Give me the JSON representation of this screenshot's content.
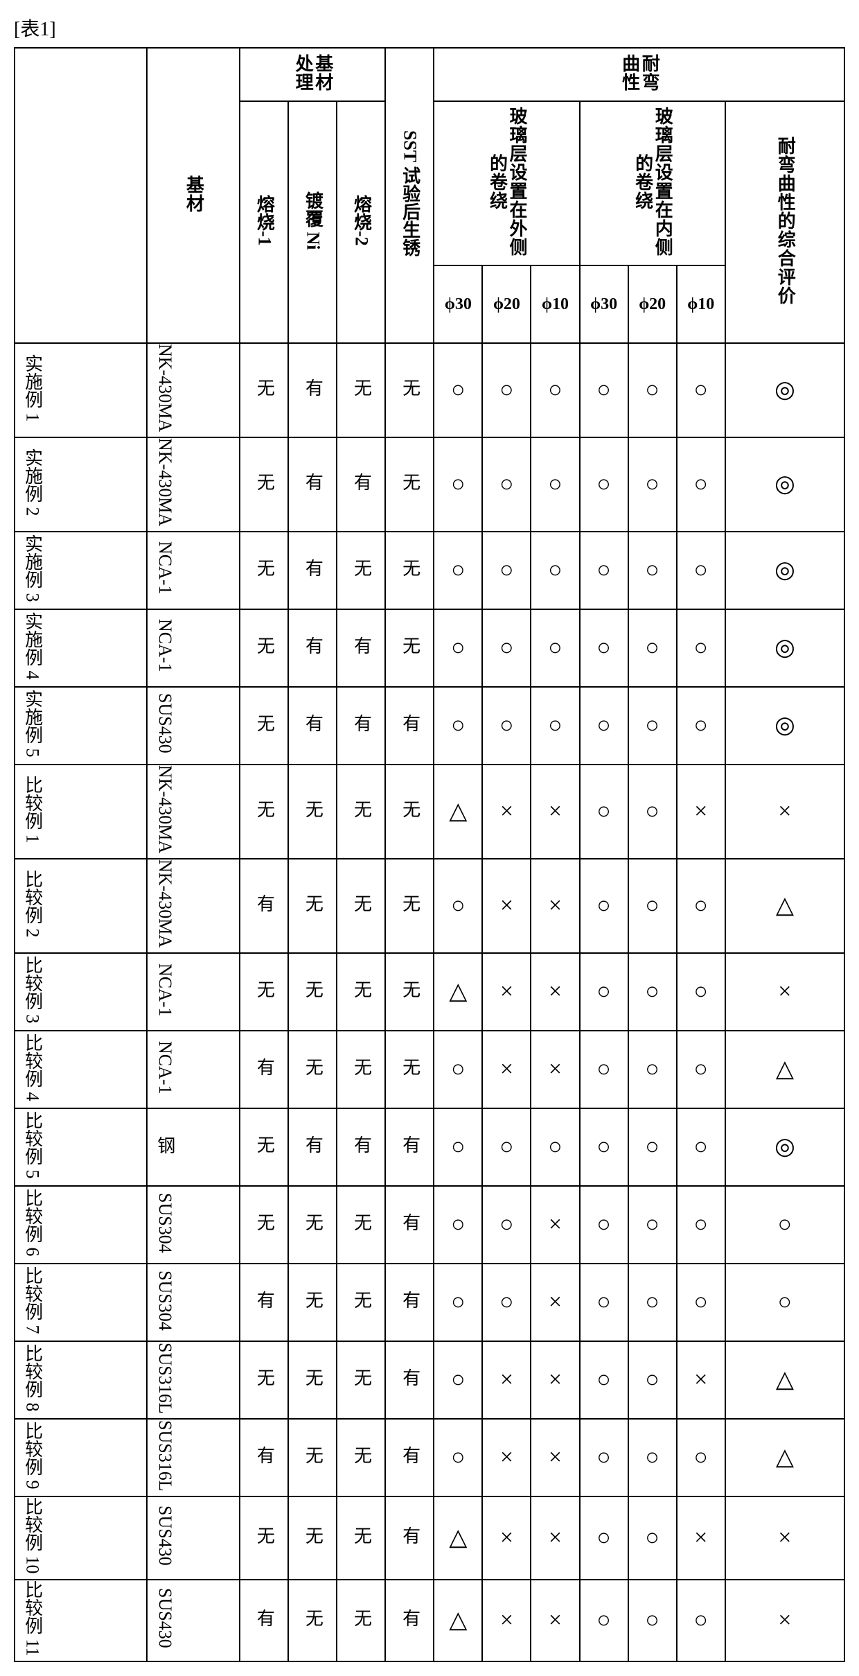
{
  "table_label": "[表1]",
  "headers": {
    "base_material": "基材",
    "base_treatment": "基材处理",
    "treat1": "熔烧-1",
    "treat2": "镀覆 Ni",
    "treat3": "熔烧-2",
    "sst": "SST 试验后生锈",
    "bend": "耐弯曲性",
    "outer": "玻璃层设置在外侧的卷绕",
    "inner": "玻璃层设置在内侧的卷绕",
    "phi30": "ϕ30",
    "phi20": "ϕ20",
    "phi10": "ϕ10",
    "overall": "耐弯曲性的综合评价"
  },
  "rows": [
    {
      "label": "实施例 1",
      "base": "NK-430MA",
      "t1": "无",
      "t2": "有",
      "t3": "无",
      "sst": "无",
      "o30": "○",
      "o20": "○",
      "o10": "○",
      "i30": "○",
      "i20": "○",
      "i10": "○",
      "ov": "◎"
    },
    {
      "label": "实施例 2",
      "base": "NK-430MA",
      "t1": "无",
      "t2": "有",
      "t3": "有",
      "sst": "无",
      "o30": "○",
      "o20": "○",
      "o10": "○",
      "i30": "○",
      "i20": "○",
      "i10": "○",
      "ov": "◎"
    },
    {
      "label": "实施例 3",
      "base": "NCA-1",
      "t1": "无",
      "t2": "有",
      "t3": "无",
      "sst": "无",
      "o30": "○",
      "o20": "○",
      "o10": "○",
      "i30": "○",
      "i20": "○",
      "i10": "○",
      "ov": "◎"
    },
    {
      "label": "实施例 4",
      "base": "NCA-1",
      "t1": "无",
      "t2": "有",
      "t3": "有",
      "sst": "无",
      "o30": "○",
      "o20": "○",
      "o10": "○",
      "i30": "○",
      "i20": "○",
      "i10": "○",
      "ov": "◎"
    },
    {
      "label": "实施例 5",
      "base": "SUS430",
      "t1": "无",
      "t2": "有",
      "t3": "有",
      "sst": "有",
      "o30": "○",
      "o20": "○",
      "o10": "○",
      "i30": "○",
      "i20": "○",
      "i10": "○",
      "ov": "◎"
    },
    {
      "label": "比较例 1",
      "base": "NK-430MA",
      "t1": "无",
      "t2": "无",
      "t3": "无",
      "sst": "无",
      "o30": "△",
      "o20": "×",
      "o10": "×",
      "i30": "○",
      "i20": "○",
      "i10": "×",
      "ov": "×"
    },
    {
      "label": "比较例 2",
      "base": "NK-430MA",
      "t1": "有",
      "t2": "无",
      "t3": "无",
      "sst": "无",
      "o30": "○",
      "o20": "×",
      "o10": "×",
      "i30": "○",
      "i20": "○",
      "i10": "○",
      "ov": "△"
    },
    {
      "label": "比较例 3",
      "base": "NCA-1",
      "t1": "无",
      "t2": "无",
      "t3": "无",
      "sst": "无",
      "o30": "△",
      "o20": "×",
      "o10": "×",
      "i30": "○",
      "i20": "○",
      "i10": "○",
      "ov": "×"
    },
    {
      "label": "比较例 4",
      "base": "NCA-1",
      "t1": "有",
      "t2": "无",
      "t3": "无",
      "sst": "无",
      "o30": "○",
      "o20": "×",
      "o10": "×",
      "i30": "○",
      "i20": "○",
      "i10": "○",
      "ov": "△"
    },
    {
      "label": "比较例 5",
      "base": "钢",
      "t1": "无",
      "t2": "有",
      "t3": "有",
      "sst": "有",
      "o30": "○",
      "o20": "○",
      "o10": "○",
      "i30": "○",
      "i20": "○",
      "i10": "○",
      "ov": "◎"
    },
    {
      "label": "比较例 6",
      "base": "SUS304",
      "t1": "无",
      "t2": "无",
      "t3": "无",
      "sst": "有",
      "o30": "○",
      "o20": "○",
      "o10": "×",
      "i30": "○",
      "i20": "○",
      "i10": "○",
      "ov": "○"
    },
    {
      "label": "比较例 7",
      "base": "SUS304",
      "t1": "有",
      "t2": "无",
      "t3": "无",
      "sst": "有",
      "o30": "○",
      "o20": "○",
      "o10": "×",
      "i30": "○",
      "i20": "○",
      "i10": "○",
      "ov": "○"
    },
    {
      "label": "比较例 8",
      "base": "SUS316L",
      "t1": "无",
      "t2": "无",
      "t3": "无",
      "sst": "有",
      "o30": "○",
      "o20": "×",
      "o10": "×",
      "i30": "○",
      "i20": "○",
      "i10": "×",
      "ov": "△"
    },
    {
      "label": "比较例 9",
      "base": "SUS316L",
      "t1": "有",
      "t2": "无",
      "t3": "无",
      "sst": "有",
      "o30": "○",
      "o20": "×",
      "o10": "×",
      "i30": "○",
      "i20": "○",
      "i10": "○",
      "ov": "△"
    },
    {
      "label": "比较例 10",
      "base": "SUS430",
      "t1": "无",
      "t2": "无",
      "t3": "无",
      "sst": "有",
      "o30": "△",
      "o20": "×",
      "o10": "×",
      "i30": "○",
      "i20": "○",
      "i10": "×",
      "ov": "×"
    },
    {
      "label": "比较例 11",
      "base": "SUS430",
      "t1": "有",
      "t2": "无",
      "t3": "无",
      "sst": "有",
      "o30": "△",
      "o20": "×",
      "o10": "×",
      "i30": "○",
      "i20": "○",
      "i10": "○",
      "ov": "×"
    }
  ]
}
